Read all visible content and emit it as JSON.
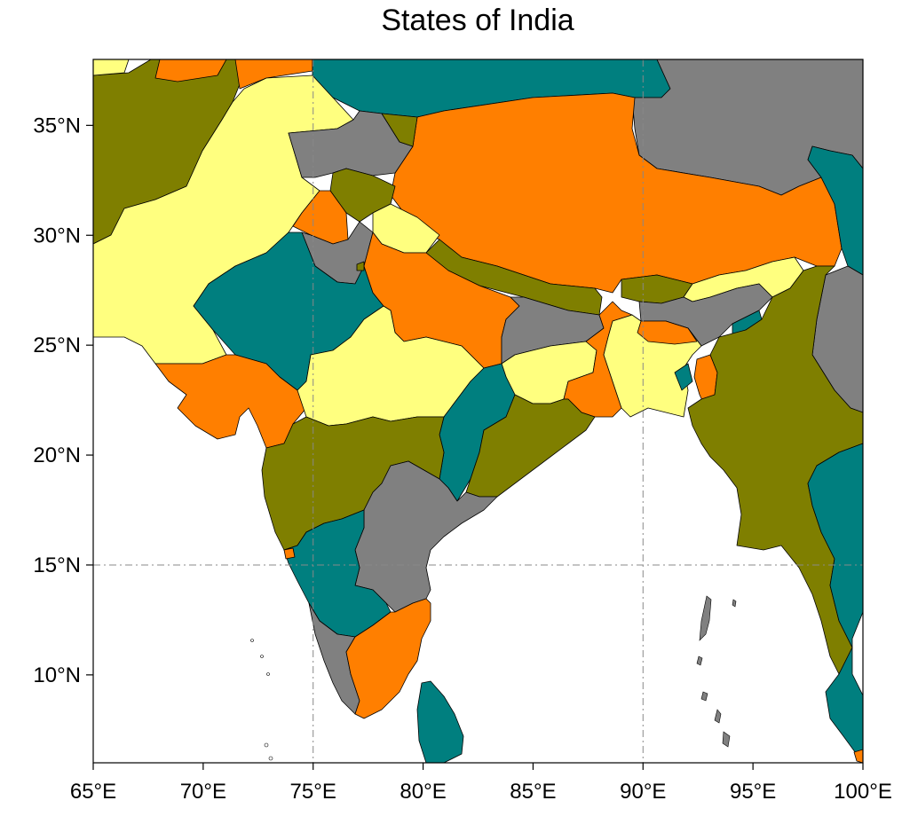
{
  "title": "States of India",
  "colors": {
    "teal": "#007f7f",
    "orange": "#ff7f00",
    "olive": "#7f7f00",
    "yellow": "#ffff7f",
    "gray": "#808080",
    "ocean": "#ffffff"
  },
  "map": {
    "lon_range": [
      65,
      100
    ],
    "lat_range": [
      6,
      38
    ],
    "x_ticks": [
      {
        "value": 65,
        "label": "65°E"
      },
      {
        "value": 70,
        "label": "70°E"
      },
      {
        "value": 75,
        "label": "75°E"
      },
      {
        "value": 80,
        "label": "80°E"
      },
      {
        "value": 85,
        "label": "85°E"
      },
      {
        "value": 90,
        "label": "90°E"
      },
      {
        "value": 95,
        "label": "95°E"
      },
      {
        "value": 100,
        "label": "100°E"
      }
    ],
    "y_ticks": [
      {
        "value": 10,
        "label": "10°N"
      },
      {
        "value": 15,
        "label": "15°N"
      },
      {
        "value": 20,
        "label": "20°N"
      },
      {
        "value": 25,
        "label": "25°N"
      },
      {
        "value": 30,
        "label": "30°N"
      },
      {
        "value": 35,
        "label": "35°N"
      }
    ],
    "gridlines": {
      "lon": [
        75,
        90
      ],
      "lat": [
        15
      ]
    }
  }
}
